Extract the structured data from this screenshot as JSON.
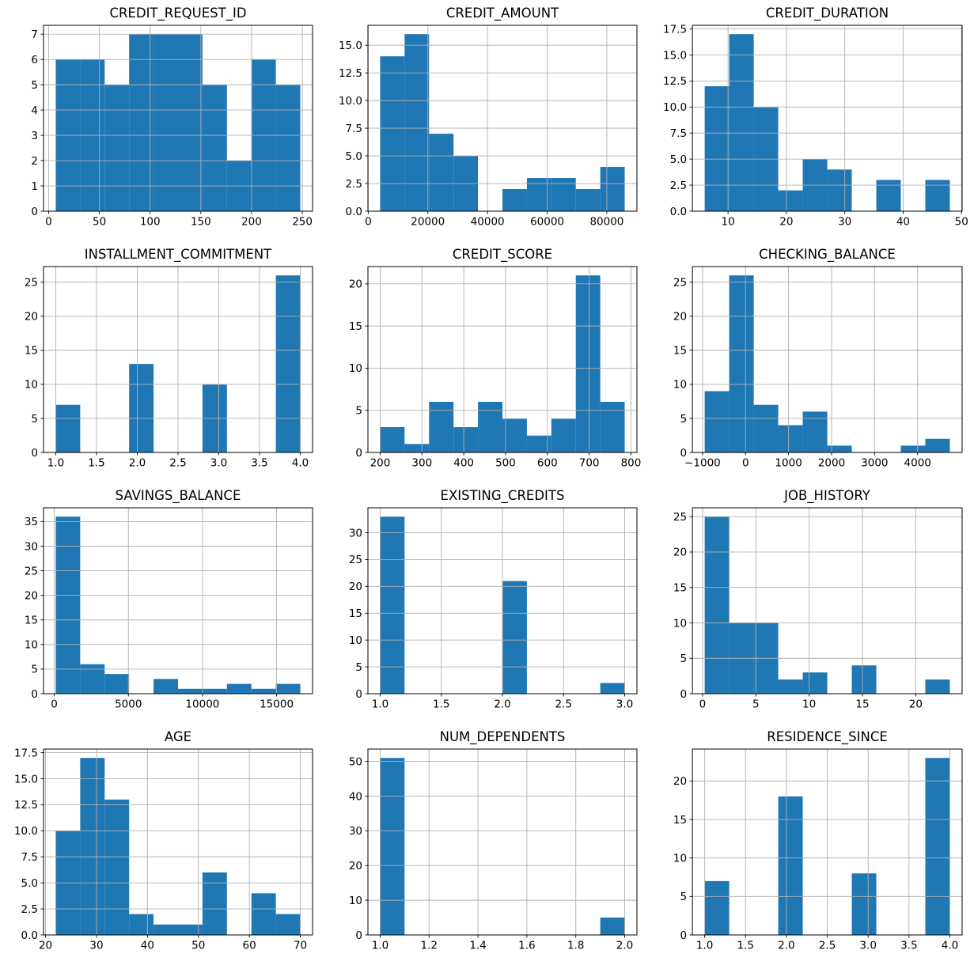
{
  "figure": {
    "layout": {
      "rows": 4,
      "cols": 3
    },
    "background": "#ffffff",
    "bar_color": "#1f77b4",
    "grid_color": "#b0b0b0",
    "spine_color": "#000000",
    "text_color": "#000000",
    "grid_on": true,
    "legend": "none"
  },
  "chart_data": [
    {
      "type": "bar",
      "title": "CREDIT_REQUEST_ID",
      "bins": 10,
      "bin_start": 7,
      "bin_width": 24.1,
      "values": [
        6,
        6,
        5,
        7,
        7,
        7,
        5,
        2,
        6,
        5
      ],
      "xlim": [
        -5.05,
        260.05
      ],
      "ylim": [
        0,
        7.35
      ],
      "xtick_values": [
        0,
        50,
        100,
        150,
        200,
        250
      ],
      "xtick_labels": [
        "0",
        "50",
        "100",
        "150",
        "200",
        "250"
      ],
      "ytick_values": [
        0,
        1,
        2,
        3,
        4,
        5,
        6,
        7
      ],
      "ytick_labels": [
        "0",
        "1",
        "2",
        "3",
        "4",
        "5",
        "6",
        "7"
      ]
    },
    {
      "type": "bar",
      "title": "CREDIT_AMOUNT",
      "bins": 10,
      "bin_start": 4000,
      "bin_width": 8200,
      "values": [
        14,
        16,
        7,
        5,
        0,
        2,
        3,
        3,
        2,
        4
      ],
      "xlim": [
        -100,
        90100
      ],
      "ylim": [
        0,
        16.8
      ],
      "xtick_values": [
        0,
        20000,
        40000,
        60000,
        80000
      ],
      "xtick_labels": [
        "0",
        "20000",
        "40000",
        "60000",
        "80000"
      ],
      "ytick_values": [
        0,
        2.5,
        5,
        7.5,
        10,
        12.5,
        15
      ],
      "ytick_labels": [
        "0.0",
        "2.5",
        "5.0",
        "7.5",
        "10.0",
        "12.5",
        "15.0"
      ]
    },
    {
      "type": "bar",
      "title": "CREDIT_DURATION",
      "bins": 10,
      "bin_start": 6,
      "bin_width": 4.2,
      "values": [
        12,
        17,
        10,
        2,
        5,
        4,
        0,
        3,
        0,
        3
      ],
      "xlim": [
        3.9,
        50.1
      ],
      "ylim": [
        0,
        17.85
      ],
      "xtick_values": [
        10,
        20,
        30,
        40,
        50
      ],
      "xtick_labels": [
        "10",
        "20",
        "30",
        "40",
        "50"
      ],
      "ytick_values": [
        0,
        2.5,
        5,
        7.5,
        10,
        12.5,
        15,
        17.5
      ],
      "ytick_labels": [
        "0.0",
        "2.5",
        "5.0",
        "7.5",
        "10.0",
        "12.5",
        "15.0",
        "17.5"
      ]
    },
    {
      "type": "bar",
      "title": "INSTALLMENT_COMMITMENT",
      "bins": 10,
      "bin_start": 1.0,
      "bin_width": 0.3,
      "values": [
        7,
        0,
        0,
        13,
        0,
        0,
        10,
        0,
        0,
        26
      ],
      "xlim": [
        0.85,
        4.15
      ],
      "ylim": [
        0,
        27.3
      ],
      "xtick_values": [
        1.0,
        1.5,
        2.0,
        2.5,
        3.0,
        3.5,
        4.0
      ],
      "xtick_labels": [
        "1.0",
        "1.5",
        "2.0",
        "2.5",
        "3.0",
        "3.5",
        "4.0"
      ],
      "ytick_values": [
        0,
        5,
        10,
        15,
        20,
        25
      ],
      "ytick_labels": [
        "0",
        "5",
        "10",
        "15",
        "20",
        "25"
      ]
    },
    {
      "type": "bar",
      "title": "CREDIT_SCORE",
      "bins": 10,
      "bin_start": 200,
      "bin_width": 58.5,
      "values": [
        3,
        1,
        6,
        3,
        6,
        4,
        2,
        4,
        21,
        6
      ],
      "xlim": [
        170.75,
        814.25
      ],
      "ylim": [
        0,
        22.05
      ],
      "xtick_values": [
        200,
        300,
        400,
        500,
        600,
        700,
        800
      ],
      "xtick_labels": [
        "200",
        "300",
        "400",
        "500",
        "600",
        "700",
        "800"
      ],
      "ytick_values": [
        0,
        5,
        10,
        15,
        20
      ],
      "ytick_labels": [
        "0",
        "5",
        "10",
        "15",
        "20"
      ]
    },
    {
      "type": "bar",
      "title": "CHECKING_BALANCE",
      "bins": 10,
      "bin_start": -950,
      "bin_width": 570,
      "values": [
        9,
        26,
        7,
        4,
        6,
        1,
        0,
        0,
        1,
        2
      ],
      "xlim": [
        -1235,
        5035
      ],
      "ylim": [
        0,
        27.3
      ],
      "xtick_values": [
        -1000,
        0,
        1000,
        2000,
        3000,
        4000
      ],
      "xtick_labels": [
        "−1000",
        "0",
        "1000",
        "2000",
        "3000",
        "4000"
      ],
      "ytick_values": [
        0,
        5,
        10,
        15,
        20,
        25
      ],
      "ytick_labels": [
        "0",
        "5",
        "10",
        "15",
        "20",
        "25"
      ]
    },
    {
      "type": "bar",
      "title": "SAVINGS_BALANCE",
      "bins": 10,
      "bin_start": 100,
      "bin_width": 1650,
      "values": [
        36,
        6,
        4,
        0,
        3,
        1,
        1,
        2,
        1,
        2
      ],
      "xlim": [
        -725,
        17425
      ],
      "ylim": [
        0,
        37.8
      ],
      "xtick_values": [
        0,
        5000,
        10000,
        15000
      ],
      "xtick_labels": [
        "0",
        "5000",
        "10000",
        "15000"
      ],
      "ytick_values": [
        0,
        5,
        10,
        15,
        20,
        25,
        30,
        35
      ],
      "ytick_labels": [
        "0",
        "5",
        "10",
        "15",
        "20",
        "25",
        "30",
        "35"
      ]
    },
    {
      "type": "bar",
      "title": "EXISTING_CREDITS",
      "bins": 10,
      "bin_start": 1.0,
      "bin_width": 0.2,
      "values": [
        33,
        0,
        0,
        0,
        0,
        21,
        0,
        0,
        0,
        2
      ],
      "xlim": [
        0.9,
        3.1
      ],
      "ylim": [
        0,
        34.65
      ],
      "xtick_values": [
        1.0,
        1.5,
        2.0,
        2.5,
        3.0
      ],
      "xtick_labels": [
        "1.0",
        "1.5",
        "2.0",
        "2.5",
        "3.0"
      ],
      "ytick_values": [
        0,
        5,
        10,
        15,
        20,
        25,
        30
      ],
      "ytick_labels": [
        "0",
        "5",
        "10",
        "15",
        "20",
        "25",
        "30"
      ]
    },
    {
      "type": "bar",
      "title": "JOB_HISTORY",
      "bins": 10,
      "bin_start": 0.2,
      "bin_width": 2.3,
      "values": [
        25,
        10,
        10,
        2,
        3,
        0,
        4,
        0,
        0,
        2
      ],
      "xlim": [
        -0.95,
        24.35
      ],
      "ylim": [
        0,
        26.25
      ],
      "xtick_values": [
        0,
        5,
        10,
        15,
        20
      ],
      "xtick_labels": [
        "0",
        "5",
        "10",
        "15",
        "20"
      ],
      "ytick_values": [
        0,
        5,
        10,
        15,
        20,
        25
      ],
      "ytick_labels": [
        "0",
        "5",
        "10",
        "15",
        "20",
        "25"
      ]
    },
    {
      "type": "bar",
      "title": "AGE",
      "bins": 10,
      "bin_start": 22,
      "bin_width": 4.8,
      "values": [
        10,
        17,
        13,
        2,
        1,
        1,
        6,
        0,
        4,
        2
      ],
      "xlim": [
        19.6,
        72.4
      ],
      "ylim": [
        0,
        17.85
      ],
      "xtick_values": [
        20,
        30,
        40,
        50,
        60,
        70
      ],
      "xtick_labels": [
        "20",
        "30",
        "40",
        "50",
        "60",
        "70"
      ],
      "ytick_values": [
        0,
        2.5,
        5,
        7.5,
        10,
        12.5,
        15,
        17.5
      ],
      "ytick_labels": [
        "0.0",
        "2.5",
        "5.0",
        "7.5",
        "10.0",
        "12.5",
        "15.0",
        "17.5"
      ]
    },
    {
      "type": "bar",
      "title": "NUM_DEPENDENTS",
      "bins": 10,
      "bin_start": 1.0,
      "bin_width": 0.1,
      "values": [
        51,
        0,
        0,
        0,
        0,
        0,
        0,
        0,
        0,
        5
      ],
      "xlim": [
        0.95,
        2.05
      ],
      "ylim": [
        0,
        53.55
      ],
      "xtick_values": [
        1.0,
        1.2,
        1.4,
        1.6,
        1.8,
        2.0
      ],
      "xtick_labels": [
        "1.0",
        "1.2",
        "1.4",
        "1.6",
        "1.8",
        "2.0"
      ],
      "ytick_values": [
        0,
        10,
        20,
        30,
        40,
        50
      ],
      "ytick_labels": [
        "0",
        "10",
        "20",
        "30",
        "40",
        "50"
      ]
    },
    {
      "type": "bar",
      "title": "RESIDENCE_SINCE",
      "bins": 10,
      "bin_start": 1.0,
      "bin_width": 0.3,
      "values": [
        7,
        0,
        0,
        18,
        0,
        0,
        8,
        0,
        0,
        23
      ],
      "xlim": [
        0.85,
        4.15
      ],
      "ylim": [
        0,
        24.15
      ],
      "xtick_values": [
        1.0,
        1.5,
        2.0,
        2.5,
        3.0,
        3.5,
        4.0
      ],
      "xtick_labels": [
        "1.0",
        "1.5",
        "2.0",
        "2.5",
        "3.0",
        "3.5",
        "4.0"
      ],
      "ytick_values": [
        0,
        5,
        10,
        15,
        20
      ],
      "ytick_labels": [
        "0",
        "5",
        "10",
        "15",
        "20"
      ]
    }
  ]
}
